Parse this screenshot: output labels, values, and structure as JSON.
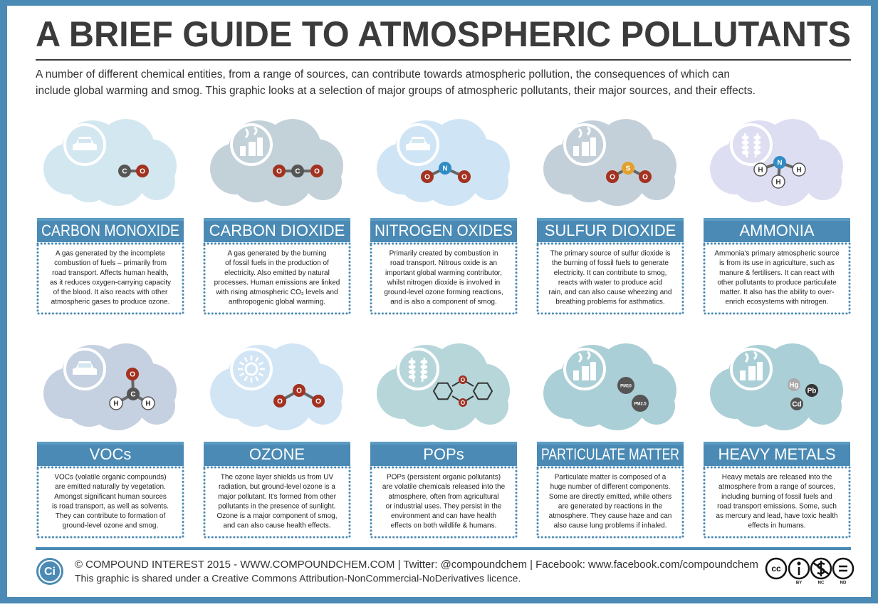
{
  "header": {
    "title": "A BRIEF GUIDE TO ATMOSPHERIC POLLUTANTS",
    "intro": [
      "A number of different chemical entities, from a range of sources, can contribute towards atmospheric pollution, the consequences of which can",
      "include global warming and smog. This graphic looks at a selection of major groups of atmospheric pollutants, their major sources, and their effects."
    ]
  },
  "items": [
    {
      "name": "CARBON MONOXIDE",
      "atoms": [
        "C",
        "O"
      ],
      "lines": [
        "A gas generated by the incomplete",
        "combustion of fuels – primarily from",
        "road transport. Affects human health,",
        "as it reduces oxygen-carrying capacity",
        "of the blood. It also reacts with other",
        "atmospheric gases to produce ozone."
      ]
    },
    {
      "name": "CARBON DIOXIDE",
      "atoms": [
        "O",
        "C",
        "O"
      ],
      "lines": [
        "A gas generated by the burning",
        "of fossil fuels in the production of",
        "electricity. Also emitted by natural",
        "processes. Human emissions are linked",
        "with rising atmospheric CO₂ levels and",
        "anthropogenic global warming."
      ]
    },
    {
      "name": "NITROGEN OXIDES",
      "atoms": [
        "O",
        "N",
        "O"
      ],
      "lines": [
        "Primarily created by combustion in",
        "road transport. Nitrous oxide is an",
        "important global warming contributor,",
        "whilst nitrogen dioxide is involved in",
        "ground-level ozone forming reactions,",
        "and is also a component of smog."
      ]
    },
    {
      "name": "SULFUR DIOXIDE",
      "atoms": [
        "O",
        "S",
        "O"
      ],
      "lines": [
        "The primary source of sulfur dioxide is",
        "the burning of fossil fuels to generate",
        "electricity. It can contribute to smog,",
        "reacts with water to produce acid",
        "rain, and can also cause wheezing and",
        "breathing problems for asthmatics."
      ]
    },
    {
      "name": "AMMONIA",
      "atoms": [
        "H",
        "N",
        "H",
        "H"
      ],
      "lines": [
        "Ammonia's primary atmospheric source",
        "is from its use in agriculture, such as",
        "manure & fertilisers. It can react with",
        "other pollutants to produce particulate",
        "matter. It also has the ability to over-",
        "enrich ecosystems with nitrogen."
      ]
    },
    {
      "name": "VOCs",
      "atoms": [
        "O",
        "C",
        "H",
        "H"
      ],
      "lines": [
        "VOCs (volatile organic compounds)",
        "are emitted naturally by vegetation.",
        "Amongst significant human sources",
        "is road transport, as well as solvents.",
        "They can contribute to formation of",
        "ground-level ozone and smog."
      ]
    },
    {
      "name": "OZONE",
      "atoms": [
        "O",
        "O",
        "O"
      ],
      "lines": [
        "The ozone layer shields us from UV",
        "radiation, but ground-level ozone is a",
        "major pollutant. It's formed from other",
        "pollutants in the presence of sunlight.",
        "Ozone is a major component of smog,",
        "and can also cause health effects."
      ]
    },
    {
      "name": "POPs",
      "atoms": [
        "O",
        "O"
      ],
      "lines": [
        "POPs (persistent organic pollutants)",
        "are volatile chemicals released into the",
        "atmosphere, often from agricultural",
        "or industrial uses. They persist in the",
        "environment and can have health",
        "effects on both wildlife & humans."
      ]
    },
    {
      "name": "PARTICULATE MATTER",
      "atoms": [
        "PM10",
        "PM2.5"
      ],
      "lines": [
        "Particulate matter is composed of a",
        "huge number of different components.",
        "Some are directly emitted, while others",
        "are generated by reactions in the",
        "atmosphere. They cause haze and can",
        "also cause lung problems if inhaled."
      ]
    },
    {
      "name": "HEAVY METALS",
      "atoms": [
        "Hg",
        "Pb",
        "Cd"
      ],
      "lines": [
        "Heavy metals are released into the",
        "atmosphere from a range of sources,",
        "including burning of fossil fuels and",
        "road transport emissions. Some, such",
        "as mercury and lead, have toxic health",
        "effects in humans."
      ]
    }
  ],
  "footer": {
    "logo": "Ci",
    "line1": "© COMPOUND INTEREST 2015 - WWW.COMPOUNDCHEM.COM | Twitter: @compoundchem | Facebook: www.facebook.com/compoundchem",
    "line2": "This graphic is shared under a Creative Commons Attribution-NonCommercial-NoDerivatives licence.",
    "cc": "cc",
    "badges": [
      "BY",
      "NC",
      "ND"
    ]
  }
}
